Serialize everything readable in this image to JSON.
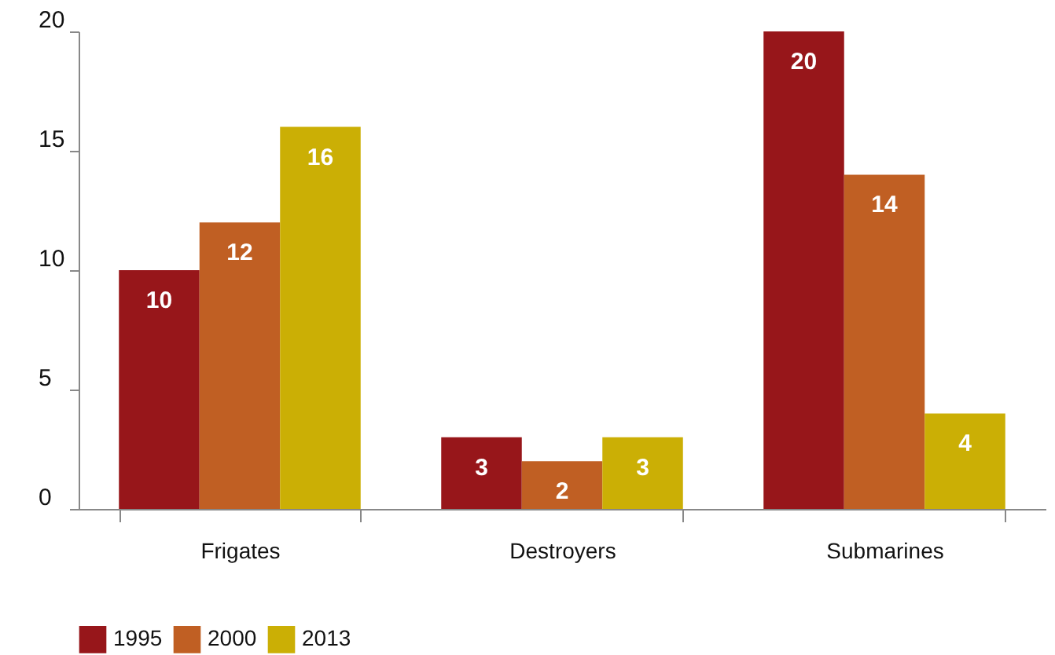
{
  "chart_data": {
    "type": "bar",
    "categories": [
      "Frigates",
      "Destroyers",
      "Submarines"
    ],
    "series": [
      {
        "name": "1995",
        "color": "#97161a",
        "values": [
          10,
          3,
          20
        ]
      },
      {
        "name": "2000",
        "color": "#c05f23",
        "values": [
          12,
          2,
          14
        ]
      },
      {
        "name": "2013",
        "color": "#cbaf05",
        "values": [
          16,
          3,
          4
        ]
      }
    ],
    "ylim": [
      0,
      20
    ],
    "yticks": [
      0,
      5,
      10,
      15,
      20
    ],
    "data_labels": true,
    "grid": false,
    "legend": "bottom"
  }
}
